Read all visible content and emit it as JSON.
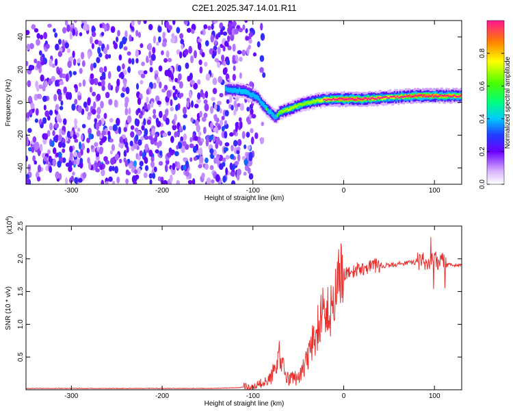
{
  "title": "C2E1.2025.347.14.01.R11",
  "chart_data": [
    {
      "type": "heatmap",
      "xlabel": "Height of straight line (km)",
      "ylabel": "Frequency (Hz)",
      "xlim": [
        -350,
        130
      ],
      "ylim": [
        -50,
        50
      ],
      "xticks": [
        -300,
        -200,
        -100,
        0,
        100
      ],
      "yticks": [
        -40,
        -20,
        0,
        20,
        40
      ],
      "colorbar": {
        "label": "Normalized spectral amplitude",
        "range": [
          0,
          1
        ],
        "ticks": [
          0.0,
          0.2,
          0.4,
          0.6,
          0.8
        ],
        "colormap": "rainbow"
      },
      "noise_region": {
        "x": [
          -350,
          -100
        ],
        "y": [
          -50,
          50
        ],
        "amplitude": 0.15
      },
      "signal_ridge": [
        {
          "x": -130,
          "y": 8,
          "amp": 0.45
        },
        {
          "x": -110,
          "y": 7,
          "amp": 0.5
        },
        {
          "x": -95,
          "y": 3,
          "amp": 0.45
        },
        {
          "x": -85,
          "y": -4,
          "amp": 0.5
        },
        {
          "x": -75,
          "y": -9,
          "amp": 0.45
        },
        {
          "x": -70,
          "y": -6,
          "amp": 0.6
        },
        {
          "x": -60,
          "y": -4,
          "amp": 0.7
        },
        {
          "x": -45,
          "y": -1,
          "amp": 0.6
        },
        {
          "x": -30,
          "y": 1,
          "amp": 0.65
        },
        {
          "x": -15,
          "y": 2,
          "amp": 0.85
        },
        {
          "x": 0,
          "y": 2,
          "amp": 1.0
        },
        {
          "x": 20,
          "y": 2,
          "amp": 0.95
        },
        {
          "x": 50,
          "y": 3,
          "amp": 0.8
        },
        {
          "x": 80,
          "y": 4,
          "amp": 1.0
        },
        {
          "x": 100,
          "y": 4,
          "amp": 0.95
        },
        {
          "x": 130,
          "y": 4,
          "amp": 0.9
        }
      ]
    },
    {
      "type": "line",
      "xlabel": "Height of straight line (km)",
      "ylabel": "SNR (10 * v/v)",
      "multiplier_label": "(x10",
      "multiplier_exp": "4",
      "xlim": [
        -350,
        130
      ],
      "ylim": [
        0,
        2.5
      ],
      "xticks": [
        -300,
        -200,
        -100,
        0,
        100
      ],
      "yticks": [
        0.5,
        1.0,
        1.5,
        2.0,
        2.5
      ],
      "color": "#e8302e",
      "series": [
        {
          "x": [
            -350,
            -300,
            -250,
            -200,
            -150,
            -120,
            -100,
            -90,
            -80,
            -75,
            -70,
            -65,
            -60,
            -55,
            -50,
            -45,
            -40,
            -35,
            -30,
            -25,
            -20,
            -15,
            -10,
            -5,
            0,
            10,
            20,
            30,
            40,
            50,
            60,
            70,
            80,
            90,
            95,
            100,
            110,
            120,
            130
          ],
          "values": [
            0.02,
            0.02,
            0.02,
            0.02,
            0.02,
            0.03,
            0.05,
            0.1,
            0.2,
            0.4,
            0.55,
            0.3,
            0.15,
            0.2,
            0.15,
            0.3,
            0.45,
            0.7,
            0.95,
            1.1,
            1.0,
            1.3,
            1.5,
            1.6,
            1.75,
            1.8,
            1.85,
            1.88,
            1.9,
            1.9,
            1.92,
            1.93,
            1.95,
            1.95,
            1.97,
            1.97,
            1.95,
            1.9,
            1.9
          ]
        }
      ]
    }
  ]
}
